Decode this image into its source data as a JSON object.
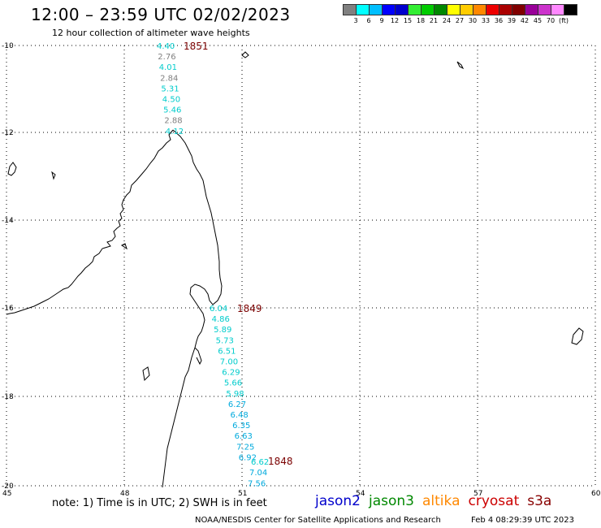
{
  "header": {
    "title": "12:00 – 23:59 UTC 02/02/2023",
    "subtitle": "12 hour collection of altimeter wave heights"
  },
  "colorbar": {
    "colors": [
      "#808080",
      "#00ffff",
      "#00bfff",
      "#0000ff",
      "#0000cd",
      "#33ee33",
      "#00cc00",
      "#008800",
      "#ffff00",
      "#ffcc00",
      "#ff8800",
      "#ee0000",
      "#aa0000",
      "#800000",
      "#990099",
      "#cc33cc",
      "#ff88ff",
      "#000000"
    ],
    "labels": [
      "3",
      "6",
      "9",
      "12",
      "15",
      "18",
      "21",
      "24",
      "27",
      "30",
      "33",
      "36",
      "39",
      "42",
      "45",
      "70",
      "(ft)"
    ]
  },
  "map": {
    "lat_labels": [
      "-10",
      "-12",
      "-14",
      "-16",
      "-18",
      "-20"
    ],
    "lon_labels": [
      "45",
      "48",
      "51",
      "54",
      "57",
      "60"
    ],
    "tracks": [
      {
        "time_label": "1851",
        "points": [
          {
            "value": "4.40",
            "color": "#00cccc"
          },
          {
            "value": "2.76",
            "color": "#808080"
          },
          {
            "value": "4.01",
            "color": "#00cccc"
          },
          {
            "value": "2.84",
            "color": "#808080"
          },
          {
            "value": "5.31",
            "color": "#00cccc"
          },
          {
            "value": "4.50",
            "color": "#00cccc"
          },
          {
            "value": "5.46",
            "color": "#00cccc"
          },
          {
            "value": "2.88",
            "color": "#808080"
          },
          {
            "value": "4.12",
            "color": "#00cccc"
          }
        ]
      },
      {
        "time_label": "1849",
        "points": [
          {
            "value": "6.04",
            "color": "#00cccc"
          },
          {
            "value": "4.86",
            "color": "#00cccc"
          },
          {
            "value": "5.89",
            "color": "#00cccc"
          },
          {
            "value": "5.73",
            "color": "#00cccc"
          },
          {
            "value": "6.51",
            "color": "#00cccc"
          },
          {
            "value": "7.00",
            "color": "#00cccc"
          },
          {
            "value": "6.29",
            "color": "#00cccc"
          },
          {
            "value": "5.66",
            "color": "#00cccc"
          },
          {
            "value": "5.98",
            "color": "#00cccc"
          },
          {
            "value": "6.27",
            "color": "#00aadd"
          },
          {
            "value": "6.48",
            "color": "#00aadd"
          },
          {
            "value": "6.35",
            "color": "#00aadd"
          },
          {
            "value": "6.63",
            "color": "#00aadd"
          },
          {
            "value": "7.25",
            "color": "#00aadd"
          },
          {
            "value": "6.92",
            "color": "#00aadd"
          }
        ]
      },
      {
        "time_label": "1848",
        "points": [
          {
            "value": "6.62",
            "color": "#00cccc"
          },
          {
            "value": "7.04",
            "color": "#00aadd"
          },
          {
            "value": "7.56",
            "color": "#00aadd"
          }
        ]
      }
    ],
    "time_label_color": "#7a0000"
  },
  "footer": {
    "note": "note: 1) Time is in UTC; 2) SWH is in feet",
    "missions": [
      {
        "name": "jason2",
        "color": "#0000cc"
      },
      {
        "name": "jason3",
        "color": "#008800"
      },
      {
        "name": "altika",
        "color": "#ff8800"
      },
      {
        "name": "cryosat",
        "color": "#cc0000"
      },
      {
        "name": "s3a",
        "color": "#880000"
      }
    ],
    "credit": "NOAA/NESDIS Center for Satellite Applications and Research",
    "generated": "Feb  4 08:29:39 UTC 2023"
  }
}
